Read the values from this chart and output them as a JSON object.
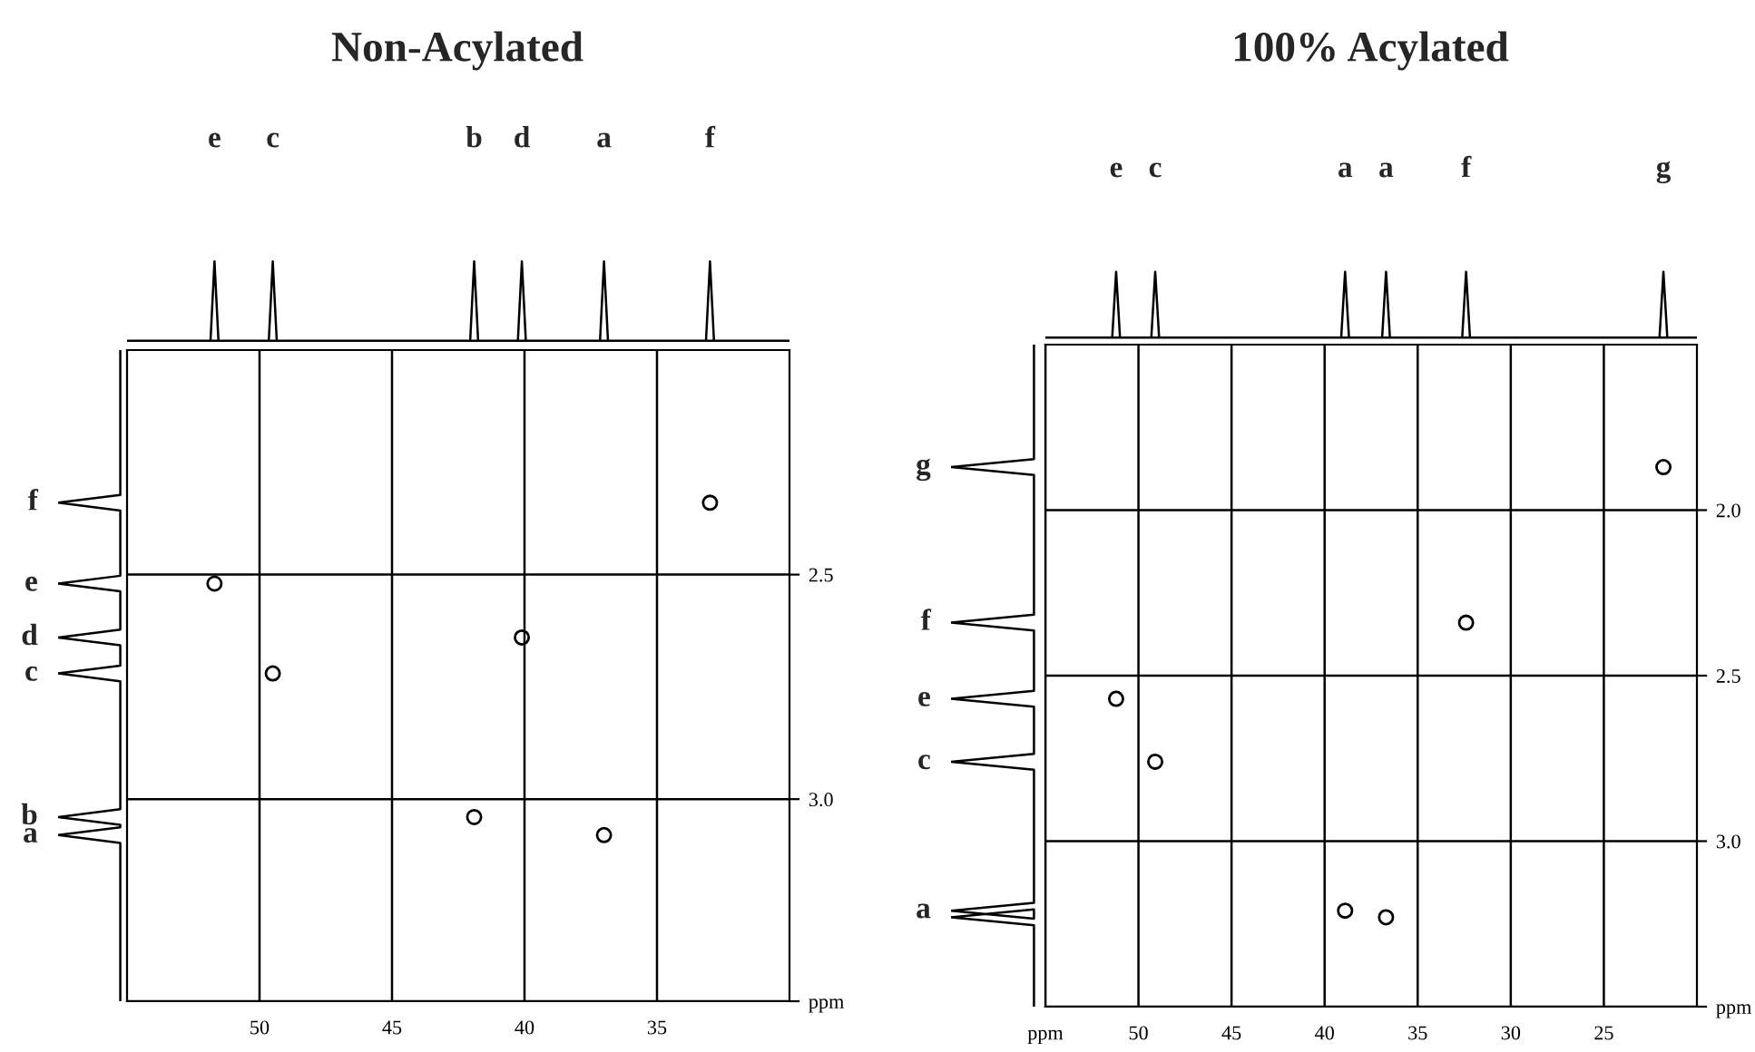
{
  "chart_data": [
    {
      "type": "scatter",
      "title": "Non-Acylated",
      "color": "#000000",
      "marker": "circle",
      "grid": true,
      "xlim": [
        55,
        30
      ],
      "ylim": [
        3.45,
        2.0
      ],
      "xticks": [
        50,
        45,
        40,
        35
      ],
      "yticks": [
        {
          "value": 2.5,
          "label": "2.5"
        },
        {
          "value": 3.0,
          "label": "3.0"
        },
        {
          "value": 3.45,
          "label": "ppm"
        }
      ],
      "x": [
        33.0,
        51.7,
        40.1,
        49.5,
        41.9,
        37.0
      ],
      "values": [
        2.34,
        2.52,
        2.64,
        2.72,
        3.04,
        3.08
      ],
      "annotations": [
        "f",
        "e",
        "d",
        "c",
        "b",
        "a"
      ]
    },
    {
      "type": "scatter",
      "title": "100% Acylated",
      "color": "#000000",
      "marker": "circle",
      "grid": true,
      "xlim": [
        55,
        20
      ],
      "ylim": [
        3.5,
        1.5
      ],
      "xticks": [
        {
          "value": 55,
          "label": "ppm"
        },
        50,
        45,
        40,
        35,
        30,
        25
      ],
      "yticks": [
        {
          "value": 2.0,
          "label": "2.0"
        },
        {
          "value": 2.5,
          "label": "2.5"
        },
        {
          "value": 3.0,
          "label": "3.0"
        },
        {
          "value": 3.5,
          "label": "ppm"
        }
      ],
      "x": [
        21.8,
        32.4,
        51.2,
        49.1,
        38.9,
        36.7
      ],
      "values": [
        1.87,
        2.34,
        2.57,
        2.76,
        3.21,
        3.23
      ],
      "annotations": [
        "g",
        "f",
        "e",
        "c",
        "a",
        "a"
      ]
    }
  ]
}
